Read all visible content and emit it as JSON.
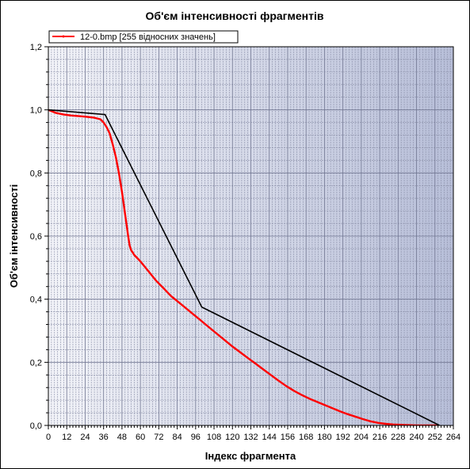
{
  "chart_data": {
    "type": "line",
    "title": "Об'єм інтенсивності фрагментів",
    "xlabel": "Індекс фрагмента",
    "ylabel": "Об'єм інтенсивності",
    "xlim": [
      0,
      264
    ],
    "ylim": [
      0,
      1.2
    ],
    "x_ticks": [
      "0",
      "12",
      "24",
      "36",
      "48",
      "60",
      "72",
      "84",
      "96",
      "108",
      "120",
      "132",
      "144",
      "156",
      "168",
      "180",
      "192",
      "204",
      "216",
      "228",
      "240",
      "252",
      "264"
    ],
    "y_ticks": [
      "0,0",
      "0,2",
      "0,4",
      "0,6",
      "0,8",
      "1,0",
      "1,2"
    ],
    "grid": true,
    "legend": {
      "placement": "top-left",
      "entries": [
        "12-0.bmp [255 відносних значень]"
      ]
    },
    "series": [
      {
        "name": "12-0.bmp [255 відносних значень]",
        "color": "#ff0000",
        "x": [
          0,
          5,
          10,
          15,
          20,
          25,
          30,
          34,
          36,
          38,
          40,
          42,
          44,
          46,
          48,
          50,
          52,
          53,
          54,
          55,
          56,
          58,
          60,
          65,
          70,
          75,
          80,
          85,
          90,
          95,
          100,
          105,
          110,
          115,
          120,
          125,
          130,
          135,
          140,
          145,
          150,
          155,
          160,
          165,
          170,
          175,
          180,
          185,
          190,
          195,
          200,
          205,
          210,
          215,
          220,
          225,
          230,
          235,
          240,
          245,
          250,
          252,
          254
        ],
        "values": [
          1.0,
          0.99,
          0.985,
          0.982,
          0.98,
          0.978,
          0.975,
          0.97,
          0.96,
          0.945,
          0.925,
          0.89,
          0.85,
          0.8,
          0.74,
          0.67,
          0.6,
          0.57,
          0.555,
          0.548,
          0.54,
          0.53,
          0.52,
          0.49,
          0.46,
          0.435,
          0.41,
          0.39,
          0.37,
          0.35,
          0.33,
          0.31,
          0.29,
          0.27,
          0.25,
          0.232,
          0.214,
          0.196,
          0.178,
          0.16,
          0.142,
          0.125,
          0.11,
          0.097,
          0.085,
          0.075,
          0.065,
          0.055,
          0.045,
          0.036,
          0.028,
          0.02,
          0.013,
          0.008,
          0.005,
          0.003,
          0.002,
          0.001,
          0.0,
          0.0,
          0.0,
          0.0,
          0.0
        ]
      },
      {
        "color": "#000000",
        "x": [
          0,
          37,
          100,
          255
        ],
        "values": [
          1.0,
          0.985,
          0.375,
          0.0
        ]
      }
    ]
  }
}
